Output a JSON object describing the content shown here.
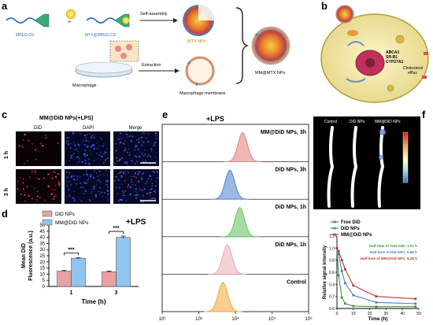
{
  "panels": {
    "a": "a",
    "b": "b",
    "c": "c",
    "d": "d",
    "e": "e",
    "f": "f"
  },
  "panel_a": {
    "mpeg_cd": "MPEG-CD",
    "mtx_mpeg": "MTX@MPEG-CD",
    "self_assembly": "Self-assembly",
    "mtx_nps": "MTX NPs",
    "macrophage": "Macrophage",
    "extraction": "Extraction",
    "membrane": "Macrophage membrane",
    "mm_mtx_nps": "MM@MTX NPs"
  },
  "panel_b": {
    "proteins": [
      "ABCA1",
      "SR-B1",
      "CYP27A1"
    ],
    "efflux": "Cholesterol efflux"
  },
  "panel_c": {
    "title": "MM@DiD NPs(+LPS)",
    "cols": [
      "DiD",
      "DAPI",
      "Merge"
    ],
    "rows": [
      "1 h",
      "3 h"
    ]
  },
  "panel_d": {
    "lps": "+LPS",
    "significance": "***",
    "chart_data": {
      "type": "bar",
      "categories": [
        "1",
        "3"
      ],
      "series": [
        {
          "name": "DiD NPs",
          "values": [
            12.5,
            12
          ],
          "errors": [
            0.5,
            0.5
          ],
          "color": "#e8a1a4"
        },
        {
          "name": "MM@DiD NPs",
          "values": [
            23,
            40
          ],
          "errors": [
            0.5,
            1
          ],
          "color": "#8fc5ef"
        }
      ],
      "xlabel": "Time (h)",
      "ylabel": "Mean DiD Fluorescence (a.u.)",
      "ylim": [
        0,
        50
      ],
      "yticks": [
        "0",
        "5",
        "10",
        "15",
        "20",
        "25",
        "30",
        "35",
        "40",
        "45",
        "50"
      ]
    }
  },
  "panel_e": {
    "title": "+LPS",
    "chart_data": {
      "type": "area",
      "rows": [
        {
          "label": "MM@DiD NPs, 3h",
          "peak_log": 4.2,
          "color": "#e87a7a",
          "fill": "#f4b4b4"
        },
        {
          "label": "DiD NPs, 3h",
          "peak_log": 3.85,
          "color": "#4a7fcf",
          "fill": "#9ab7e6"
        },
        {
          "label": "DiD NPs, 1h",
          "peak_log": 4.12,
          "color": "#5cbf5c",
          "fill": "#a6dba6"
        },
        {
          "label": "DiD NPs, 1h",
          "peak_log": 3.78,
          "color": "#e3a6a8",
          "fill": "#f3d2d3"
        },
        {
          "label": "Control",
          "peak_log": 3.66,
          "color": "#e8a43a",
          "fill": "#f7cf8e"
        }
      ],
      "xscale": "log",
      "xticks": [
        "10²",
        "10³",
        "10⁴",
        "10⁵",
        "10⁶"
      ],
      "xlim_log": [
        2,
        6
      ]
    }
  },
  "panel_f": {
    "image_labels": [
      "Control",
      "DiD NPs",
      "MM@DiD NPs"
    ],
    "legend": [
      "Free DiD",
      "DiD NPs",
      "MM@DiD NPs"
    ],
    "half_lives": [
      {
        "text": "Half time of Free DiD: 1.01 h",
        "color": "#3a9a3a"
      },
      {
        "text": "Half time of DiD NPs: 5.88 h",
        "color": "#4a7fcf"
      },
      {
        "text": "Half time of MM@DiD NPs: 8.38 h",
        "color": "#c0392b"
      }
    ],
    "chart_data": {
      "type": "line",
      "series": [
        {
          "name": "Free DiD",
          "color": "#3a9a3a",
          "x": [
            0,
            1,
            3,
            5,
            10,
            24,
            48
          ],
          "y": [
            1.0,
            0.55,
            0.18,
            0.08,
            0.04,
            0.03,
            0.03
          ]
        },
        {
          "name": "DiD NPs",
          "color": "#4a7fcf",
          "x": [
            0,
            1,
            3,
            5,
            10,
            24,
            48
          ],
          "y": [
            1.0,
            0.9,
            0.62,
            0.42,
            0.22,
            0.1,
            0.08
          ]
        },
        {
          "name": "MM@DiD NPs",
          "color": "#c0392b",
          "x": [
            0,
            1,
            3,
            5,
            10,
            24,
            48
          ],
          "y": [
            1.0,
            0.95,
            0.8,
            0.65,
            0.38,
            0.2,
            0.16
          ]
        }
      ],
      "xlabel": "Time (h)",
      "ylabel": "Relative signal intensity",
      "xlim": [
        0,
        50
      ],
      "ylim": [
        0,
        1.2
      ],
      "xticks": [
        "0",
        "10",
        "20",
        "30",
        "40",
        "50"
      ],
      "yticks": [
        "0.0",
        "0.2",
        "0.4",
        "0.6",
        "0.8",
        "1.0",
        "1.2"
      ]
    }
  }
}
